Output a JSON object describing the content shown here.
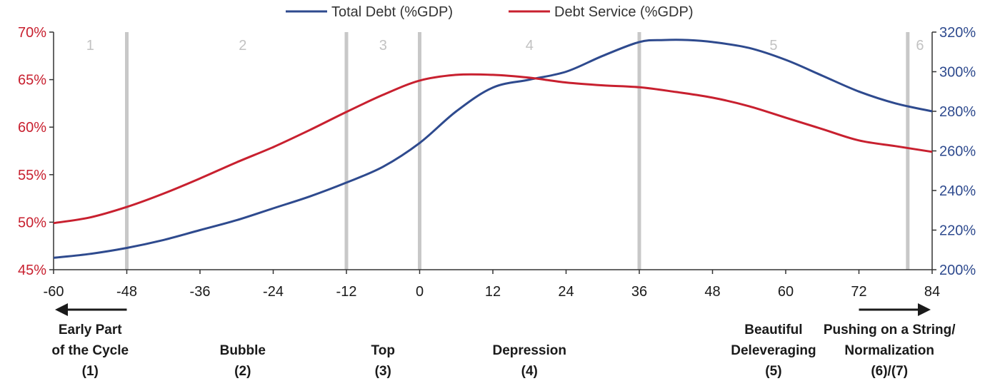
{
  "colors": {
    "total_debt": "#2e4a8e",
    "debt_service": "#c8202f",
    "phase_line": "#c8c8c8",
    "axis": "#333333"
  },
  "chart_data": {
    "type": "line",
    "legend": {
      "position": "top-center",
      "entries": [
        "Total Debt (%GDP)",
        "Debt Service (%GDP)"
      ]
    },
    "x_ticks": [
      -60,
      -48,
      -36,
      -24,
      -12,
      0,
      12,
      24,
      36,
      48,
      60,
      72,
      84
    ],
    "xlim": [
      -60,
      84
    ],
    "y_left": {
      "ticks": [
        "45%",
        "50%",
        "55%",
        "60%",
        "65%",
        "70%"
      ],
      "values": [
        45,
        50,
        55,
        60,
        65,
        70
      ],
      "ylim": [
        45,
        70
      ]
    },
    "y_right": {
      "ticks": [
        "200%",
        "220%",
        "240%",
        "260%",
        "280%",
        "300%",
        "320%"
      ],
      "values": [
        200,
        220,
        240,
        260,
        280,
        300,
        320
      ],
      "ylim": [
        200,
        320
      ]
    },
    "grid": false,
    "phase_boundaries": [
      -48,
      -12,
      0,
      36,
      80
    ],
    "phases": [
      {
        "label": "1",
        "x": -54
      },
      {
        "label": "2",
        "x": -29
      },
      {
        "label": "3",
        "x": -6
      },
      {
        "label": "4",
        "x": 18
      },
      {
        "label": "5",
        "x": 58
      },
      {
        "label": "6",
        "x": 82
      }
    ],
    "series": [
      {
        "name": "Total Debt (%GDP)",
        "axis": "right",
        "x": [
          -60,
          -54,
          -48,
          -42,
          -36,
          -30,
          -24,
          -18,
          -12,
          -6,
          0,
          6,
          12,
          18,
          24,
          30,
          36,
          40,
          44,
          48,
          54,
          60,
          66,
          72,
          78,
          84
        ],
        "values": [
          206,
          208,
          211,
          215,
          220,
          225,
          231,
          237,
          244,
          252,
          264,
          280,
          292,
          296,
          300,
          308,
          315,
          316,
          316,
          315,
          312,
          306,
          298,
          290,
          284,
          280
        ]
      },
      {
        "name": "Debt Service (%GDP)",
        "axis": "left",
        "x": [
          -60,
          -54,
          -48,
          -42,
          -36,
          -30,
          -24,
          -18,
          -12,
          -6,
          0,
          6,
          12,
          18,
          24,
          30,
          36,
          42,
          48,
          54,
          60,
          66,
          72,
          78,
          84
        ],
        "values": [
          49.9,
          50.5,
          51.6,
          53.0,
          54.6,
          56.3,
          57.9,
          59.7,
          61.6,
          63.4,
          64.9,
          65.5,
          65.5,
          65.2,
          64.7,
          64.4,
          64.2,
          63.7,
          63.1,
          62.2,
          61.0,
          59.8,
          58.6,
          58.0,
          57.4
        ]
      }
    ],
    "arrows": [
      {
        "direction": "left",
        "x_from": -48,
        "x_to": -60
      },
      {
        "direction": "right",
        "x_from": 72,
        "x_to": 84
      }
    ],
    "stage_labels": [
      {
        "lines": [
          "Early Part",
          "of the Cycle",
          "(1)"
        ],
        "x": -54
      },
      {
        "lines": [
          "Bubble",
          "(2)"
        ],
        "x": -29
      },
      {
        "lines": [
          "Top",
          "(3)"
        ],
        "x": -6
      },
      {
        "lines": [
          "Depression",
          "(4)"
        ],
        "x": 18
      },
      {
        "lines": [
          "Beautiful",
          "Deleveraging",
          "(5)"
        ],
        "x": 58
      },
      {
        "lines": [
          "Pushing on a String/",
          "Normalization",
          "(6)/(7)"
        ],
        "x": 77
      }
    ]
  }
}
